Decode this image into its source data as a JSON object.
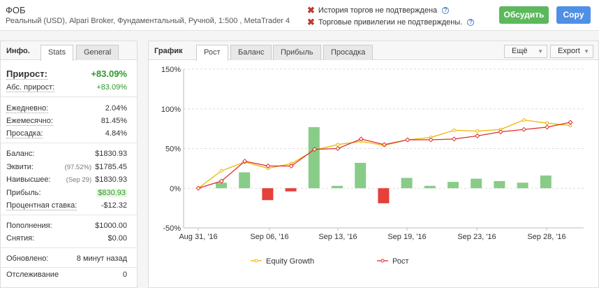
{
  "header": {
    "title": "ФОБ",
    "subtitle": "Реальный (USD), Alpari Broker, Фундаментальный, Ручной, 1:500 , MetaTrader 4",
    "warnings": [
      "История торгов не подтверждена",
      "Торговые привилегии не подтверждены."
    ],
    "discuss_label": "Обсудить",
    "copy_label": "Copy"
  },
  "left_panel": {
    "title": "Инфо.",
    "tabs": [
      "Stats",
      "General"
    ],
    "active_tab": "Stats",
    "gain_label": "Прирост:",
    "gain_value": "+83.09%",
    "abs_gain_label": "Абс. прирост:",
    "abs_gain_value": "+83.09%",
    "daily_label": "Ежедневно:",
    "daily_value": "2.04%",
    "monthly_label": "Ежемесячно:",
    "monthly_value": "81.45%",
    "drawdown_label": "Просадка:",
    "drawdown_value": "4.84%",
    "balance_label": "Баланс:",
    "balance_value": "$1830.93",
    "equity_label": "Эквити:",
    "equity_pct": "(97.52%)",
    "equity_value": "$1785.45",
    "highest_label": "Наивысшее:",
    "highest_date": "(Sep 29)",
    "highest_value": "$1830.93",
    "profit_label": "Прибыль:",
    "profit_value": "$830.93",
    "interest_label": "Процентная ставка:",
    "interest_value": "-$12.32",
    "deposits_label": "Пополнения:",
    "deposits_value": "$1000.00",
    "withdrawals_label": "Снятия:",
    "withdrawals_value": "$0.00",
    "updated_label": "Обновлено:",
    "updated_value": "8 минут назад",
    "tracking_label": "Отслеживание",
    "tracking_value": "0"
  },
  "right_panel": {
    "title": "График",
    "tabs": [
      "Рост",
      "Баланс",
      "Прибыль",
      "Просадка"
    ],
    "active_tab": "Рост",
    "more_label": "Ещё",
    "export_label": "Export"
  },
  "colors": {
    "equity": "#f0b400",
    "growth": "#d9302c",
    "bars": "#88cc88",
    "bars_neg": "#e5403a"
  },
  "chart_data": {
    "type": "line",
    "x_labels": [
      "Aug 31, '16",
      "Sep 06, '16",
      "Sep 13, '16",
      "Sep 19, '16",
      "Sep 23, '16",
      "Sep 28, '16"
    ],
    "y_ticks": [
      "150%",
      "100%",
      "50%",
      "0%",
      "-50%"
    ],
    "ylim": [
      -50,
      150
    ],
    "series": [
      {
        "name": "Equity Growth",
        "values": [
          0,
          22,
          33,
          25,
          31,
          48,
          55,
          59,
          54,
          61,
          64,
          73,
          72,
          74,
          86,
          82,
          79
        ]
      },
      {
        "name": "Рост",
        "values": [
          0,
          9,
          34,
          28,
          28,
          49,
          50,
          62,
          55,
          61,
          61,
          62,
          66,
          71,
          74,
          77,
          83
        ]
      }
    ],
    "bars": [
      7,
      20,
      -15,
      -4,
      77,
      3,
      32,
      -19,
      13,
      3,
      8,
      12,
      9,
      7,
      16
    ]
  }
}
